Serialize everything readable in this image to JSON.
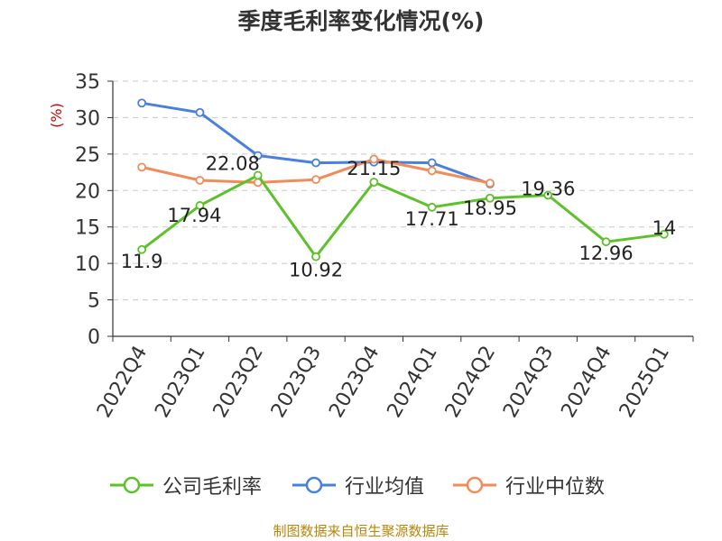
{
  "title": "季度毛利率变化情况(%)",
  "source": "制图数据来自恒生聚源数据库",
  "chart_data": {
    "type": "line",
    "title": "季度毛利率变化情况(%)",
    "ylabel": "(%)",
    "xlabel": "",
    "ylim": [
      0,
      35
    ],
    "yticks": [
      0,
      5,
      10,
      15,
      20,
      25,
      30,
      35
    ],
    "grid": "horizontal dashed",
    "legend_position": "bottom",
    "categories": [
      "2022Q4",
      "2023Q1",
      "2023Q2",
      "2023Q3",
      "2023Q4",
      "2024Q1",
      "2024Q2",
      "2024Q3",
      "2024Q4",
      "2025Q1"
    ],
    "series": [
      {
        "name": "公司毛利率",
        "color": "#5cc12a",
        "labeled": true,
        "values": [
          11.9,
          17.94,
          22.08,
          10.92,
          21.15,
          17.71,
          18.95,
          19.36,
          12.96,
          14
        ],
        "labels": [
          "11.9",
          "17.94",
          "22.08",
          "10.92",
          "21.15",
          "17.71",
          "18.95",
          "19.36",
          "12.96",
          "14"
        ]
      },
      {
        "name": "行业均值",
        "color": "#4a7fdc",
        "labeled": false,
        "values": [
          32.0,
          30.7,
          24.8,
          23.8,
          23.9,
          23.8,
          20.9,
          null,
          null,
          null
        ]
      },
      {
        "name": "行业中位数",
        "color": "#f28b5a",
        "labeled": false,
        "values": [
          23.2,
          21.4,
          21.1,
          21.5,
          24.3,
          22.7,
          21.0,
          null,
          null,
          null
        ]
      }
    ]
  }
}
